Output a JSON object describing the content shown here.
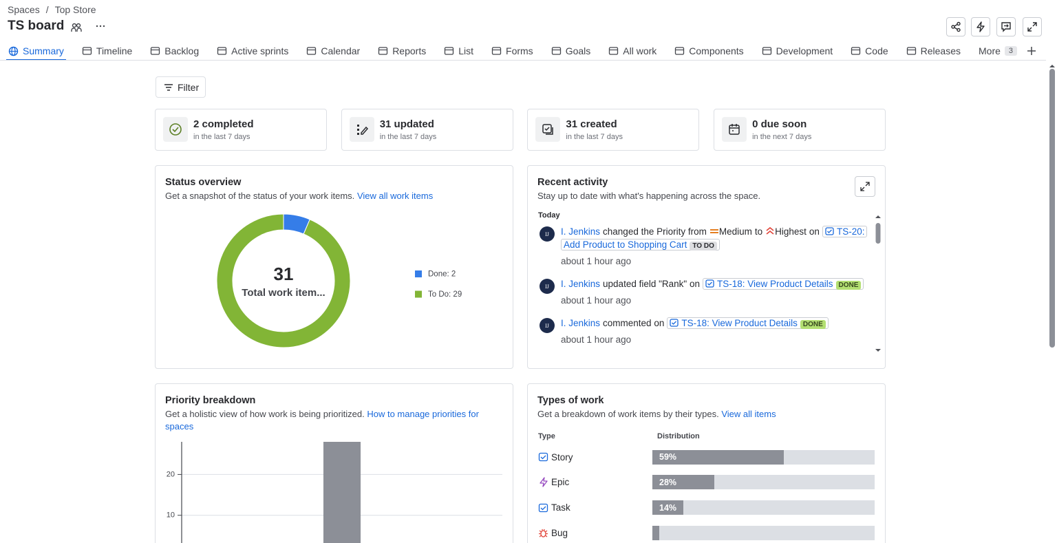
{
  "breadcrumbs": [
    "Spaces",
    "Top Store"
  ],
  "breadcrumb_separator": "/",
  "title": "TS board",
  "tabs": [
    "Summary",
    "Timeline",
    "Backlog",
    "Active sprints",
    "Calendar",
    "Reports",
    "List",
    "Forms",
    "Goals",
    "All work",
    "Components",
    "Development",
    "Code",
    "Releases"
  ],
  "active_tab": 0,
  "more": {
    "label": "More",
    "count": 3
  },
  "filter": "Filter",
  "stats": [
    {
      "title": "2 completed",
      "subtitle": "in the last 7 days"
    },
    {
      "title": "31 updated",
      "subtitle": "in the last 7 days"
    },
    {
      "title": "31 created",
      "subtitle": "in the last 7 days"
    },
    {
      "title": "0 due soon",
      "subtitle": "in the next 7 days"
    }
  ],
  "activity": {
    "title": "Recent activity",
    "description": "Stay up to date with what's happening across the space.",
    "section": "Today",
    "items": [
      {
        "initials": "IJ",
        "time": "about 1 hour ago",
        "parts": [
          {
            "k": "user",
            "t": "I. Jenkins"
          },
          {
            "k": "text",
            "t": "changed the Priority from"
          },
          {
            "k": "prio-medium",
            "t": "Medium"
          },
          {
            "k": "text",
            "t": "to"
          },
          {
            "k": "prio-highest",
            "t": "Highest"
          },
          {
            "k": "text",
            "t": "on"
          },
          {
            "k": "item",
            "t": "TS-20: Add Product to Shopping Cart",
            "status": "TO DO",
            "status_bg": "#dddee1",
            "status_fg": "#292a2e"
          }
        ]
      },
      {
        "initials": "IJ",
        "time": "about 1 hour ago",
        "parts": [
          {
            "k": "user",
            "t": "I. Jenkins"
          },
          {
            "k": "text",
            "t": "updated field \"Rank\" on"
          },
          {
            "k": "item",
            "t": "TS-18: View Product Details",
            "status": "DONE",
            "status_bg": "#b3df72",
            "status_fg": "#37471f"
          }
        ]
      },
      {
        "initials": "IJ",
        "time": "about 1 hour ago",
        "parts": [
          {
            "k": "user",
            "t": "I. Jenkins"
          },
          {
            "k": "text",
            "t": "commented on"
          },
          {
            "k": "item",
            "t": "TS-18: View Product Details",
            "status": "DONE",
            "status_bg": "#b3df72",
            "status_fg": "#37471f"
          }
        ]
      }
    ]
  },
  "chart_data": [
    {
      "type": "donut",
      "title": "Status overview",
      "description": "Get a snapshot of the status of your work items.",
      "link": "View all work items",
      "total": 31,
      "center_label": "Total work item...",
      "labels": [
        "Done: 2",
        "To Do: 29"
      ],
      "values": [
        2,
        29
      ],
      "colors": [
        "#357de8",
        "#82b536"
      ]
    },
    {
      "type": "bar",
      "title": "Priority breakdown",
      "description": "Get a holistic view of how work is being prioritized.",
      "link": "How to manage priorities for spaces",
      "categories": [
        null,
        null,
        null,
        null,
        null
      ],
      "values": [
        null,
        null,
        28,
        null,
        null
      ],
      "ylim": [
        0,
        28
      ],
      "yticks": [
        10,
        20
      ],
      "grid": true,
      "color": "#8c8f97"
    },
    {
      "type": "hbar",
      "title": "Types of work",
      "description": "Get a breakdown of work items by their types.",
      "link": "View all items",
      "column_headers": [
        "Type",
        "Distribution"
      ],
      "categories": [
        "Story",
        "Epic",
        "Task",
        "Bug"
      ],
      "values": [
        59,
        28,
        14,
        0
      ],
      "value_labels": [
        "59%",
        "28%",
        "14%",
        null
      ],
      "xlim": [
        0,
        100
      ],
      "color": "#8c8f97",
      "track_color": "#dcdfe4"
    }
  ]
}
